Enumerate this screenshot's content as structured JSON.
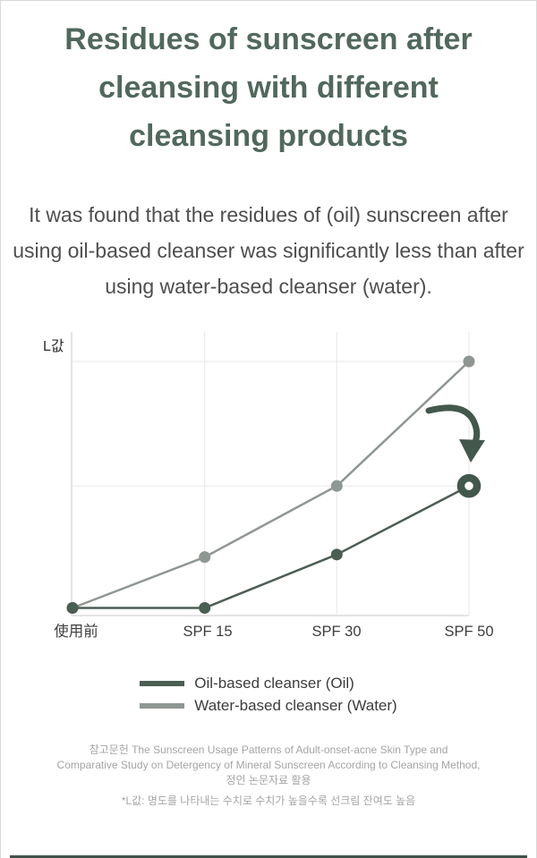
{
  "header": {
    "title": "Residues of sunscreen after cleansing with different cleansing products",
    "subtitle": "It was found that the residues of (oil) sunscreen after using oil-based cleanser was significantly less than after using water-based cleanser (water)."
  },
  "chart_data": {
    "type": "line",
    "title": "",
    "xlabel": "",
    "ylabel": "L값",
    "categories": [
      "使用前",
      "SPF 15",
      "SPF 30",
      "SPF 50"
    ],
    "series": [
      {
        "name": "Water-based cleanser (Water)",
        "key": "water",
        "color": "#8f9793",
        "values": [
          3,
          23,
          51,
          100
        ],
        "marker": "dot"
      },
      {
        "name": "Oil-based cleanser (Oil)",
        "key": "oil",
        "color": "#4b5e53",
        "values": [
          3,
          3,
          24,
          51
        ],
        "marker": "dot",
        "end_marker": "ring"
      }
    ],
    "ylim": [
      0,
      112
    ],
    "grid": true,
    "gridlines_y_values": [
      51,
      100
    ],
    "legend_position": "bottom",
    "annotations": [
      {
        "type": "curved-arrow",
        "meaning": "points down at the oil-based cleanser SPF 50 data point",
        "color": "#42584c"
      }
    ]
  },
  "legend": {
    "items": [
      {
        "label": "Oil-based cleanser (Oil)",
        "color": "#4b5e53"
      },
      {
        "label": "Water-based cleanser (Water)",
        "color": "#8f9793"
      }
    ]
  },
  "footnotes": {
    "reference_lines": [
      "참고문헌 The Sunscreen Usage Patterns of Adult-onset-acne Skin Type and",
      "Comparative Study on Detergency of Mineral Sunscreen According to Cleansing Method,",
      "정인 논문자료 활용"
    ],
    "note": "*L값: 명도를 나타내는 수치로 수치가 높을수록 선크림 잔여도 높음"
  },
  "colors": {
    "title_green": "#51685d",
    "oil_line": "#4b5e53",
    "water_line": "#8f9793",
    "ring_green": "#42584c",
    "arrow_green": "#42584c",
    "grid_gray": "#e7e7e7",
    "axis_gray": "#dcdcdc",
    "footnote_gray": "#a5a5a5",
    "bottom_bar": "#3f5249"
  }
}
